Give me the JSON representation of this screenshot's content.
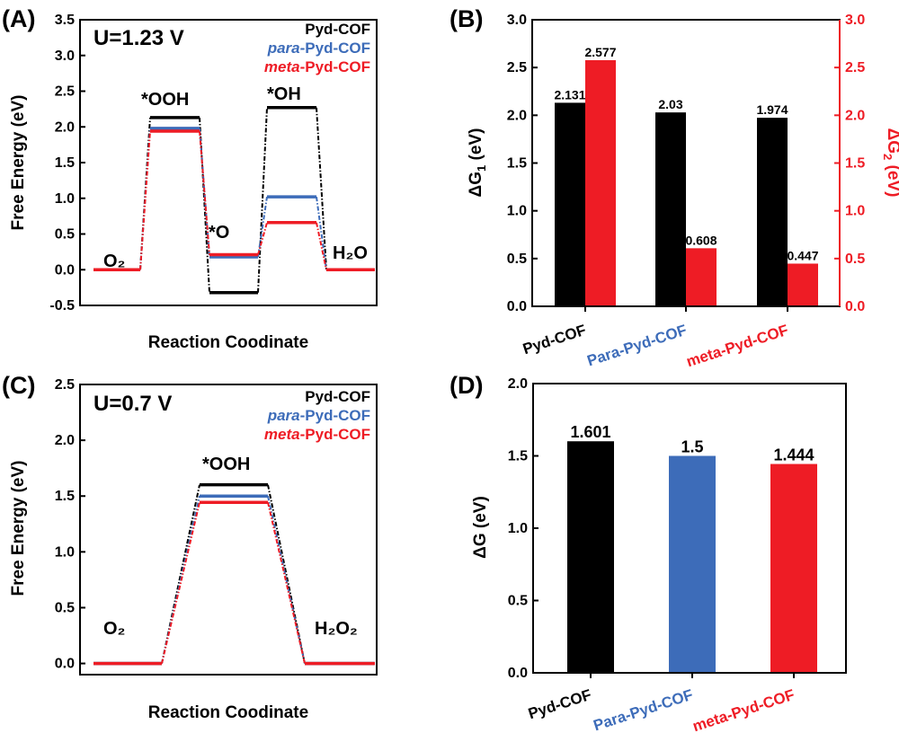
{
  "colors": {
    "black": "#000000",
    "blue": "#3d6cb9",
    "red": "#ee1c25",
    "red_dark": "#e31b23"
  },
  "panels": {
    "A": {
      "label": "(A)",
      "condition": "U=1.23 V",
      "xlabel": "Reaction Coodinate",
      "ylabel": "Free Energy (eV)",
      "legend": [
        {
          "prefix": "",
          "suffix": "Pyd-COF",
          "color": "#000000"
        },
        {
          "prefix": "para",
          "suffix": "-Pyd-COF",
          "color": "#3d6cb9"
        },
        {
          "prefix": "meta",
          "suffix": "-Pyd-COF",
          "color": "#ee1c25"
        }
      ],
      "annotations": {
        "o2": "O₂",
        "ooh": "*OOH",
        "o": "*O",
        "oh": "*OH",
        "product": "H₂O"
      }
    },
    "B": {
      "label": "(B)",
      "ylabel_left_main": "ΔG",
      "ylabel_left_sub": "1",
      "ylabel_left_tail": " (eV)",
      "ylabel_right_main": "ΔG",
      "ylabel_right_sub": "2",
      "ylabel_right_tail": " (eV)"
    },
    "C": {
      "label": "(C)",
      "condition": "U=0.7 V",
      "xlabel": "Reaction Coodinate",
      "ylabel": "Free Energy (eV)",
      "legend": [
        {
          "prefix": "",
          "suffix": "Pyd-COF",
          "color": "#000000"
        },
        {
          "prefix": "para",
          "suffix": "-Pyd-COF",
          "color": "#3d6cb9"
        },
        {
          "prefix": "meta",
          "suffix": "-Pyd-COF",
          "color": "#ee1c25"
        }
      ],
      "annotations": {
        "o2": "O₂",
        "ooh": "*OOH",
        "product": "H₂O₂"
      }
    },
    "D": {
      "label": "(D)",
      "ylabel": "ΔG (eV)"
    }
  },
  "chart_data": [
    {
      "panel": "A",
      "type": "line",
      "title": "U=1.23 V",
      "xlabel": "Reaction Coodinate",
      "ylabel": "Free Energy (eV)",
      "ylim": [
        -0.5,
        3.5
      ],
      "yticks": [
        -0.5,
        0.0,
        0.5,
        1.0,
        1.5,
        2.0,
        2.5,
        3.0,
        3.5
      ],
      "categories": [
        "O₂",
        "*OOH",
        "*O",
        "*OH",
        "H₂O"
      ],
      "series": [
        {
          "name": "Pyd-COF",
          "values": [
            0.0,
            2.13,
            -0.32,
            2.27,
            0.0
          ]
        },
        {
          "name": "para-Pyd-COF",
          "values": [
            0.0,
            1.98,
            0.18,
            1.02,
            0.0
          ]
        },
        {
          "name": "meta-Pyd-COF",
          "values": [
            0.0,
            1.94,
            0.21,
            0.66,
            0.0
          ]
        }
      ]
    },
    {
      "panel": "B",
      "type": "bar",
      "ylabel": "ΔG1 (eV)",
      "ylabel_right": "ΔG2 (eV)",
      "ylim": [
        0.0,
        3.0
      ],
      "yticks": [
        0.0,
        0.5,
        1.0,
        1.5,
        2.0,
        2.5,
        3.0
      ],
      "categories": [
        "Pyd-COF",
        "Para-Pyd-COF",
        "meta-Pyd-COF"
      ],
      "category_colors": [
        "#000000",
        "#3d6cb9",
        "#ee1c25"
      ],
      "series": [
        {
          "name": "ΔG1",
          "values": [
            2.131,
            2.03,
            1.974
          ],
          "labels": [
            "2.131",
            "2.03",
            "1.974"
          ]
        },
        {
          "name": "ΔG2",
          "values": [
            2.577,
            0.608,
            0.447
          ],
          "labels": [
            "2.577",
            "0.608",
            "0.447"
          ]
        }
      ]
    },
    {
      "panel": "C",
      "type": "line",
      "title": "U=0.7 V",
      "xlabel": "Reaction Coodinate",
      "ylabel": "Free Energy (eV)",
      "ylim": [
        -0.1,
        2.5
      ],
      "yticks": [
        0.0,
        0.5,
        1.0,
        1.5,
        2.0,
        2.5
      ],
      "categories": [
        "O₂",
        "*OOH",
        "H₂O₂"
      ],
      "series": [
        {
          "name": "Pyd-COF",
          "values": [
            0.0,
            1.601,
            0.0
          ]
        },
        {
          "name": "para-Pyd-COF",
          "values": [
            0.0,
            1.5,
            0.0
          ]
        },
        {
          "name": "meta-Pyd-COF",
          "values": [
            0.0,
            1.444,
            0.0
          ]
        }
      ]
    },
    {
      "panel": "D",
      "type": "bar",
      "ylabel": "ΔG (eV)",
      "ylim": [
        0.0,
        2.0
      ],
      "yticks": [
        0.0,
        0.5,
        1.0,
        1.5,
        2.0
      ],
      "categories": [
        "Pyd-COF",
        "Para-Pyd-COF",
        "meta-Pyd-COF"
      ],
      "category_colors": [
        "#000000",
        "#3d6cb9",
        "#ee1c25"
      ],
      "series": [
        {
          "name": "ΔG",
          "values": [
            1.601,
            1.5,
            1.444
          ],
          "labels": [
            "1.601",
            "1.5",
            "1.444"
          ]
        }
      ]
    }
  ]
}
